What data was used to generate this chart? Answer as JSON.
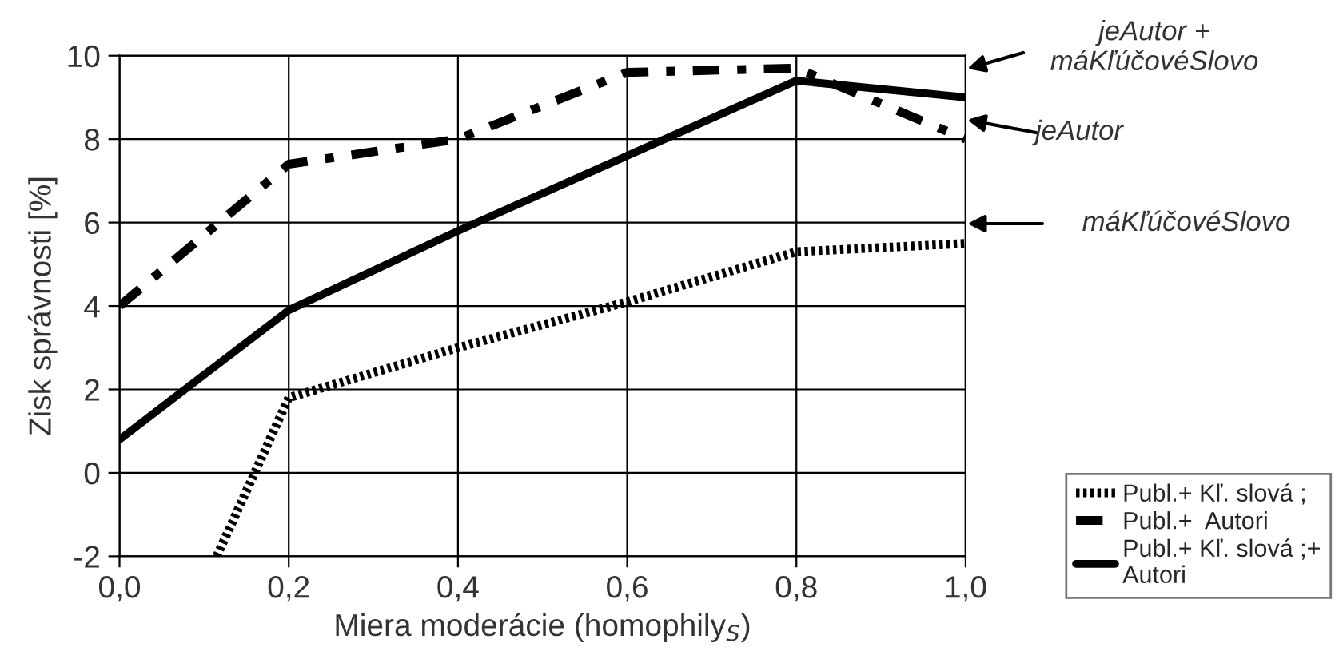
{
  "chart_data": {
    "type": "line",
    "xlabel": "Miera moderácie (homophily$_{S}$)",
    "ylabel": "Zisk správnosti [%]",
    "x": [
      0.0,
      0.2,
      0.4,
      0.6,
      0.8,
      1.0
    ],
    "series": [
      {
        "name": "Publ.+ Kľ. slová ;",
        "color": "#000000",
        "line_style": "dotted",
        "x": [
          0.115,
          0.2,
          0.4,
          0.6,
          0.8,
          1.0
        ],
        "values": [
          -2.0,
          1.8,
          3.0,
          4.1,
          5.3,
          5.5
        ]
      },
      {
        "name": "Publ.+  Autori",
        "color": "#000000",
        "line_style": "dashed",
        "values": [
          4.0,
          7.4,
          8.0,
          9.6,
          9.7,
          8.0
        ]
      },
      {
        "name": "Publ.+ Kľ. slová ;+\nAutori",
        "color": "#000000",
        "line_style": "solid",
        "values": [
          0.8,
          3.9,
          5.8,
          7.6,
          9.4,
          9.0
        ]
      }
    ],
    "xlim": [
      0.0,
      1.0
    ],
    "ylim": [
      -2,
      10
    ],
    "xticks": [
      {
        "value": 0.0,
        "label": "0,0"
      },
      {
        "value": 0.2,
        "label": "0,2"
      },
      {
        "value": 0.4,
        "label": "0,4"
      },
      {
        "value": 0.6,
        "label": "0,6"
      },
      {
        "value": 0.8,
        "label": "0,8"
      },
      {
        "value": 1.0,
        "label": "1,0"
      }
    ],
    "yticks": [
      -2,
      0,
      2,
      4,
      6,
      8,
      10
    ],
    "annotations": [
      "jeAutor +\nmáKľúčovéSlovo",
      "jeAutor",
      "máKľúčovéSlovo"
    ],
    "grid": true,
    "legend": "right",
    "marker": "none"
  }
}
